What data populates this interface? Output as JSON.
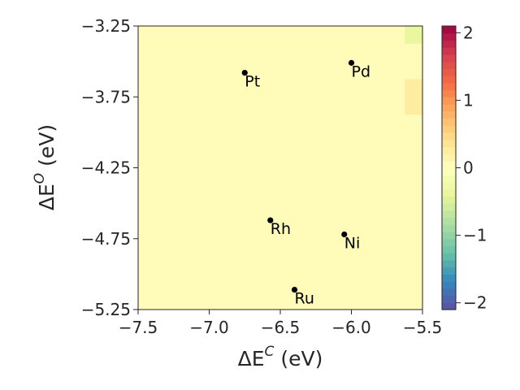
{
  "chart_data": {
    "type": "heatmap",
    "xlabel": "ΔE^C (eV)",
    "ylabel": "ΔE^O (eV)",
    "xlabel_parts": {
      "base": "ΔE",
      "sup": "C",
      "unit": " (eV)"
    },
    "ylabel_parts": {
      "base": "ΔE",
      "sup": "O",
      "unit": " (eV)"
    },
    "xlim": [
      -7.5,
      -5.5
    ],
    "ylim": [
      -5.25,
      -3.25
    ],
    "xticks": [
      -7.5,
      -7.0,
      -6.5,
      -6.0,
      -5.5
    ],
    "xtick_labels": [
      "−7.5",
      "−7.0",
      "−6.5",
      "−6.0",
      "−5.5"
    ],
    "yticks": [
      -5.25,
      -4.75,
      -4.25,
      -3.75,
      -3.25
    ],
    "ytick_labels": [
      "−5.25",
      "−4.75",
      "−4.25",
      "−3.75",
      "−3.25"
    ],
    "background_value": 0.05,
    "cells": [
      {
        "x0": -5.625,
        "x1": -5.5,
        "y0": -3.375,
        "y1": -3.25,
        "value": -0.35
      },
      {
        "x0": -5.625,
        "x1": -5.5,
        "y0": -3.875,
        "y1": -3.625,
        "value": 0.25
      }
    ],
    "points": [
      {
        "name": "Pt",
        "x": -6.75,
        "y": -3.58
      },
      {
        "name": "Pd",
        "x": -6.0,
        "y": -3.51
      },
      {
        "name": "Rh",
        "x": -6.57,
        "y": -4.62
      },
      {
        "name": "Ni",
        "x": -6.05,
        "y": -4.72
      },
      {
        "name": "Ru",
        "x": -6.4,
        "y": -5.11
      }
    ],
    "colorbar": {
      "colormap": "Spectral_r",
      "range": [
        -2.1,
        2.1
      ],
      "ticks": [
        -2,
        -1,
        0,
        1,
        2
      ],
      "tick_labels": [
        "−2",
        "−1",
        "0",
        "1",
        "2"
      ]
    }
  }
}
